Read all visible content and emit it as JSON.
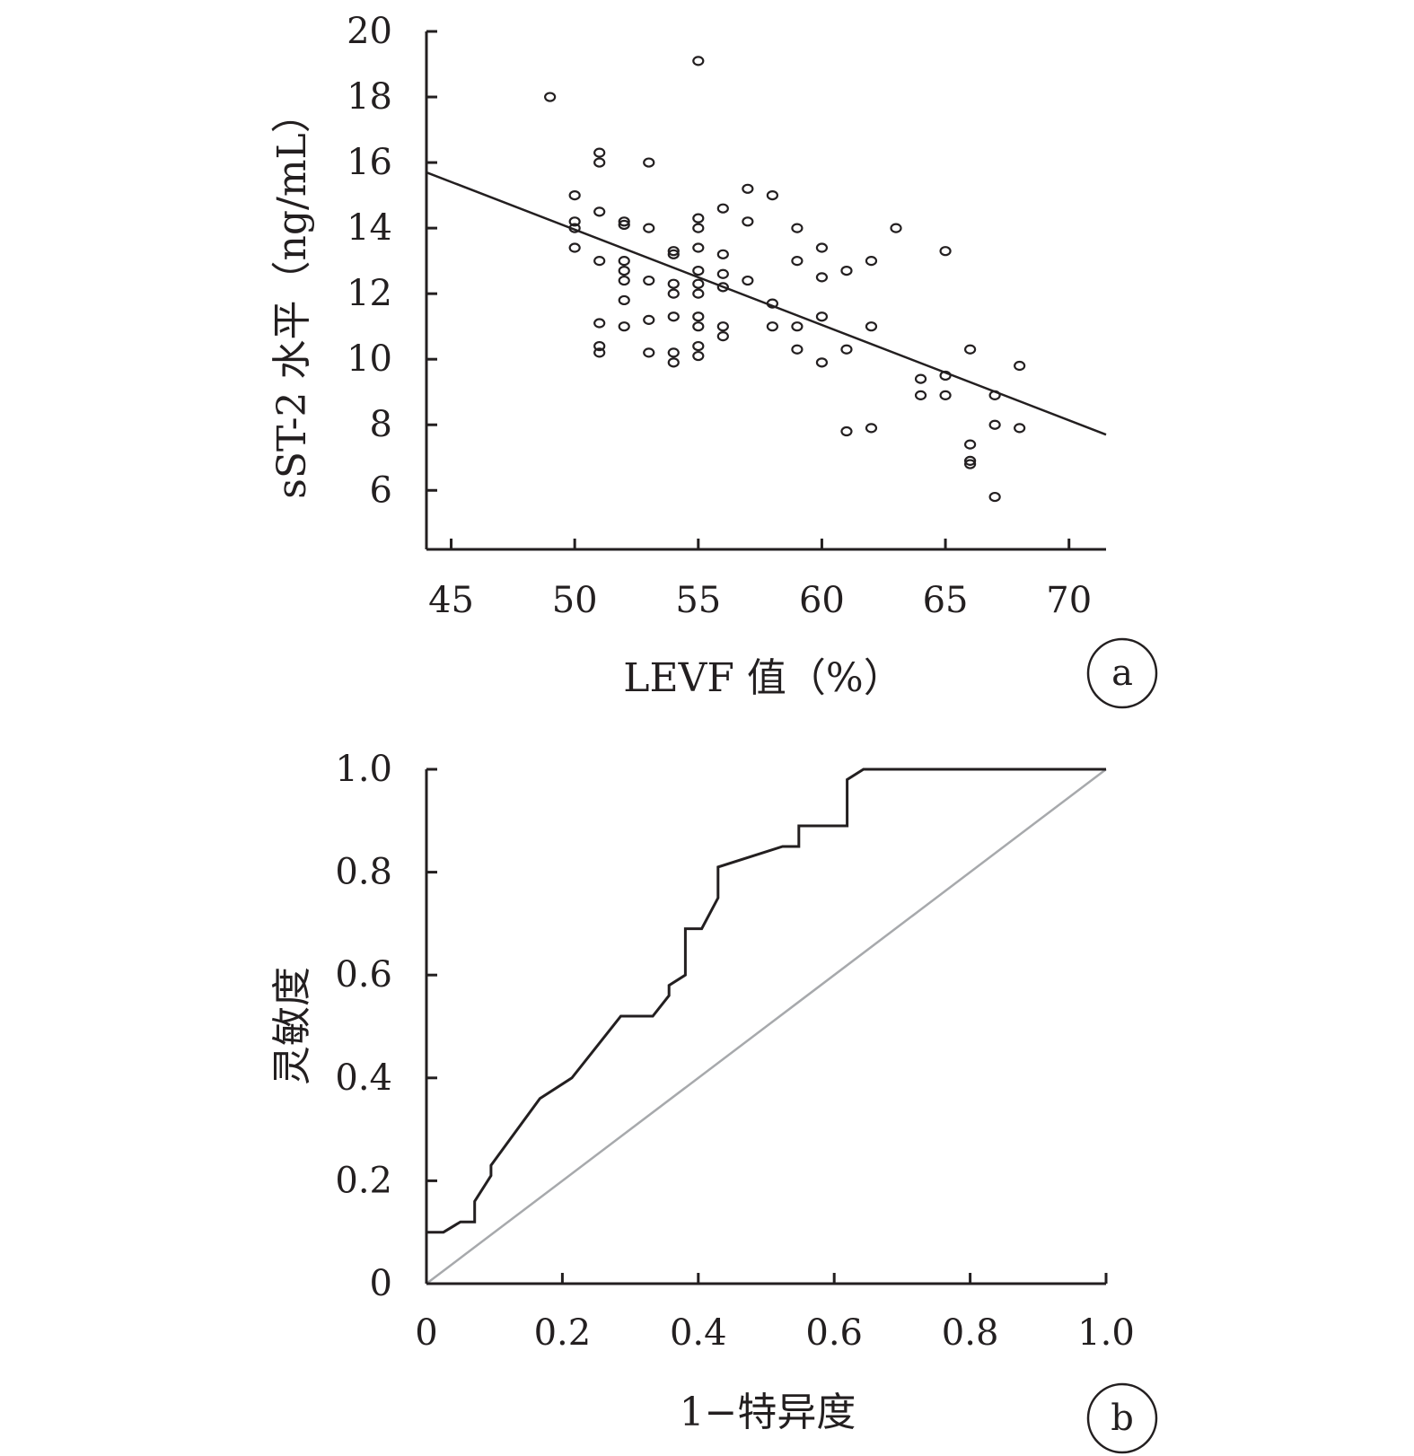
{
  "chart_data": [
    {
      "type": "scatter",
      "panel_label": "a",
      "xlabel": "LEVF 值（%）",
      "ylabel": "sST-2 水平（ng/mL）",
      "xlim": [
        44,
        71.5
      ],
      "ylim": [
        4.2,
        20
      ],
      "xticks": [
        45,
        50,
        55,
        60,
        65,
        70
      ],
      "yticks": [
        6,
        8,
        10,
        12,
        14,
        16,
        18,
        20
      ],
      "grid": false,
      "points": [
        [
          49,
          18.0
        ],
        [
          55,
          19.1
        ],
        [
          50,
          15.0
        ],
        [
          50,
          14.2
        ],
        [
          50,
          14.0
        ],
        [
          50,
          13.4
        ],
        [
          51,
          16.3
        ],
        [
          51,
          16.0
        ],
        [
          51,
          14.5
        ],
        [
          51,
          13.0
        ],
        [
          51,
          11.1
        ],
        [
          51,
          10.4
        ],
        [
          51,
          10.2
        ],
        [
          52,
          14.2
        ],
        [
          52,
          14.1
        ],
        [
          52,
          13.0
        ],
        [
          52,
          12.7
        ],
        [
          52,
          12.4
        ],
        [
          52,
          11.8
        ],
        [
          52,
          11.0
        ],
        [
          53,
          16.0
        ],
        [
          53,
          14.0
        ],
        [
          53,
          12.4
        ],
        [
          53,
          11.2
        ],
        [
          53,
          10.2
        ],
        [
          54,
          13.3
        ],
        [
          54,
          13.2
        ],
        [
          54,
          12.3
        ],
        [
          54,
          12.0
        ],
        [
          54,
          11.3
        ],
        [
          54,
          10.2
        ],
        [
          54,
          9.9
        ],
        [
          55,
          14.3
        ],
        [
          55,
          14.0
        ],
        [
          55,
          13.4
        ],
        [
          55,
          12.7
        ],
        [
          55,
          12.3
        ],
        [
          55,
          12.0
        ],
        [
          55,
          11.3
        ],
        [
          55,
          11.0
        ],
        [
          55,
          10.4
        ],
        [
          55,
          10.1
        ],
        [
          56,
          14.6
        ],
        [
          56,
          13.2
        ],
        [
          56,
          12.6
        ],
        [
          56,
          12.2
        ],
        [
          56,
          11.0
        ],
        [
          56,
          10.7
        ],
        [
          57,
          15.2
        ],
        [
          57,
          14.2
        ],
        [
          57,
          12.4
        ],
        [
          58,
          15.0
        ],
        [
          58,
          11.7
        ],
        [
          58,
          11.0
        ],
        [
          59,
          14.0
        ],
        [
          59,
          13.0
        ],
        [
          59,
          11.0
        ],
        [
          59,
          10.3
        ],
        [
          60,
          13.4
        ],
        [
          60,
          12.5
        ],
        [
          60,
          11.3
        ],
        [
          60,
          9.9
        ],
        [
          61,
          12.7
        ],
        [
          61,
          10.3
        ],
        [
          61,
          7.8
        ],
        [
          62,
          13.0
        ],
        [
          62,
          11.0
        ],
        [
          62,
          7.9
        ],
        [
          63,
          14.0
        ],
        [
          64,
          9.4
        ],
        [
          64,
          8.9
        ],
        [
          65,
          13.3
        ],
        [
          65,
          9.5
        ],
        [
          65,
          8.9
        ],
        [
          66,
          10.3
        ],
        [
          66,
          7.4
        ],
        [
          66,
          6.9
        ],
        [
          66,
          6.8
        ],
        [
          67,
          8.9
        ],
        [
          67,
          8.0
        ],
        [
          67,
          5.8
        ],
        [
          68,
          9.8
        ],
        [
          68,
          7.9
        ]
      ],
      "fit_line": [
        [
          44,
          15.7
        ],
        [
          71.5,
          7.7
        ]
      ]
    },
    {
      "type": "line",
      "panel_label": "b",
      "xlabel": "1−特异度",
      "ylabel": "灵敏度",
      "xlim": [
        0,
        1
      ],
      "ylim": [
        0,
        1
      ],
      "xticks": [
        "0",
        "0.2",
        "0.4",
        "0.6",
        "0.8",
        "1.0"
      ],
      "yticks": [
        "0",
        "0.2",
        "0.4",
        "0.6",
        "0.8",
        "1.0"
      ],
      "grid": false,
      "series": [
        {
          "color": "#231f20",
          "points": [
            [
              0,
              0.1
            ],
            [
              0.025,
              0.1
            ],
            [
              0.05,
              0.12
            ],
            [
              0.071,
              0.12
            ],
            [
              0.071,
              0.16
            ],
            [
              0.095,
              0.21
            ],
            [
              0.095,
              0.23
            ],
            [
              0.167,
              0.36
            ],
            [
              0.214,
              0.4
            ],
            [
              0.286,
              0.52
            ],
            [
              0.333,
              0.52
            ],
            [
              0.357,
              0.56
            ],
            [
              0.357,
              0.58
            ],
            [
              0.381,
              0.6
            ],
            [
              0.381,
              0.69
            ],
            [
              0.405,
              0.69
            ],
            [
              0.429,
              0.75
            ],
            [
              0.429,
              0.81
            ],
            [
              0.524,
              0.85
            ],
            [
              0.548,
              0.85
            ],
            [
              0.548,
              0.89
            ],
            [
              0.619,
              0.89
            ],
            [
              0.619,
              0.98
            ],
            [
              0.643,
              1.0
            ],
            [
              1.0,
              1.0
            ]
          ]
        },
        {
          "color": "#a7a9ac",
          "points": [
            [
              0,
              0
            ],
            [
              1,
              1
            ]
          ]
        }
      ]
    }
  ]
}
